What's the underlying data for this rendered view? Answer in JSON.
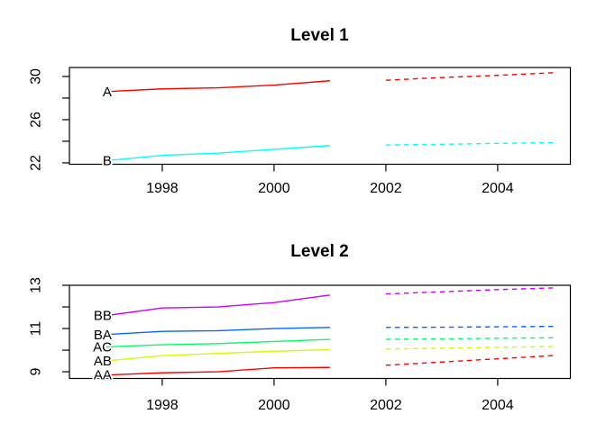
{
  "figure": {
    "background": "#FFFFFF",
    "axis_color": "#000000",
    "text_color": "#000000"
  },
  "chart_data": [
    {
      "type": "line",
      "title": "Level 1",
      "xlabel": "",
      "ylabel": "",
      "grid": false,
      "legend_position": "labels-at-line-start",
      "xlim": [
        1996.34,
        2005.3
      ],
      "ylim": [
        21.87,
        30.83
      ],
      "x_ticks": [
        1998,
        2000,
        2002,
        2004
      ],
      "y_ticks": [
        22,
        24,
        26,
        28,
        30
      ],
      "y_tick_labels": [
        22,
        26,
        30
      ],
      "x_solid": [
        1997,
        1998,
        1999,
        2000,
        2001
      ],
      "x_dashed": [
        2002,
        2003,
        2004,
        2005
      ],
      "series": [
        {
          "name": "A",
          "color": "#FF0000",
          "solid_values": [
            28.6,
            28.85,
            28.95,
            29.2,
            29.6
          ],
          "dashed_values": [
            29.65,
            29.9,
            30.1,
            30.35
          ]
        },
        {
          "name": "B",
          "color": "#00FFFF",
          "solid_values": [
            22.2,
            22.7,
            22.9,
            23.25,
            23.6
          ],
          "dashed_values": [
            23.65,
            23.72,
            23.8,
            23.88
          ]
        }
      ]
    },
    {
      "type": "line",
      "title": "Level 2",
      "xlabel": "",
      "ylabel": "",
      "grid": false,
      "legend_position": "labels-at-line-start",
      "xlim": [
        1996.34,
        2005.3
      ],
      "ylim": [
        8.69,
        13.0
      ],
      "x_ticks": [
        1998,
        2000,
        2002,
        2004
      ],
      "y_ticks": [
        9,
        10,
        11,
        12,
        13
      ],
      "y_tick_labels": [
        9,
        11,
        13
      ],
      "x_solid": [
        1997,
        1998,
        1999,
        2000,
        2001
      ],
      "x_dashed": [
        2002,
        2003,
        2004,
        2005
      ],
      "series": [
        {
          "name": "BB",
          "color": "#CC00FF",
          "solid_values": [
            11.6,
            11.95,
            12.0,
            12.2,
            12.55
          ],
          "dashed_values": [
            12.6,
            12.7,
            12.8,
            12.88
          ]
        },
        {
          "name": "BA",
          "color": "#0066FF",
          "solid_values": [
            10.72,
            10.87,
            10.9,
            11.0,
            11.05
          ],
          "dashed_values": [
            11.05,
            11.06,
            11.08,
            11.1
          ]
        },
        {
          "name": "AC",
          "color": "#00FF66",
          "solid_values": [
            10.15,
            10.25,
            10.3,
            10.4,
            10.5
          ],
          "dashed_values": [
            10.5,
            10.52,
            10.55,
            10.57
          ]
        },
        {
          "name": "AB",
          "color": "#CCFF00",
          "solid_values": [
            9.5,
            9.75,
            9.85,
            9.95,
            10.02
          ],
          "dashed_values": [
            10.05,
            10.09,
            10.13,
            10.17
          ]
        },
        {
          "name": "AA",
          "color": "#FF0000",
          "solid_values": [
            8.85,
            8.95,
            9.0,
            9.18,
            9.2
          ],
          "dashed_values": [
            9.3,
            9.45,
            9.6,
            9.75
          ]
        }
      ]
    }
  ]
}
